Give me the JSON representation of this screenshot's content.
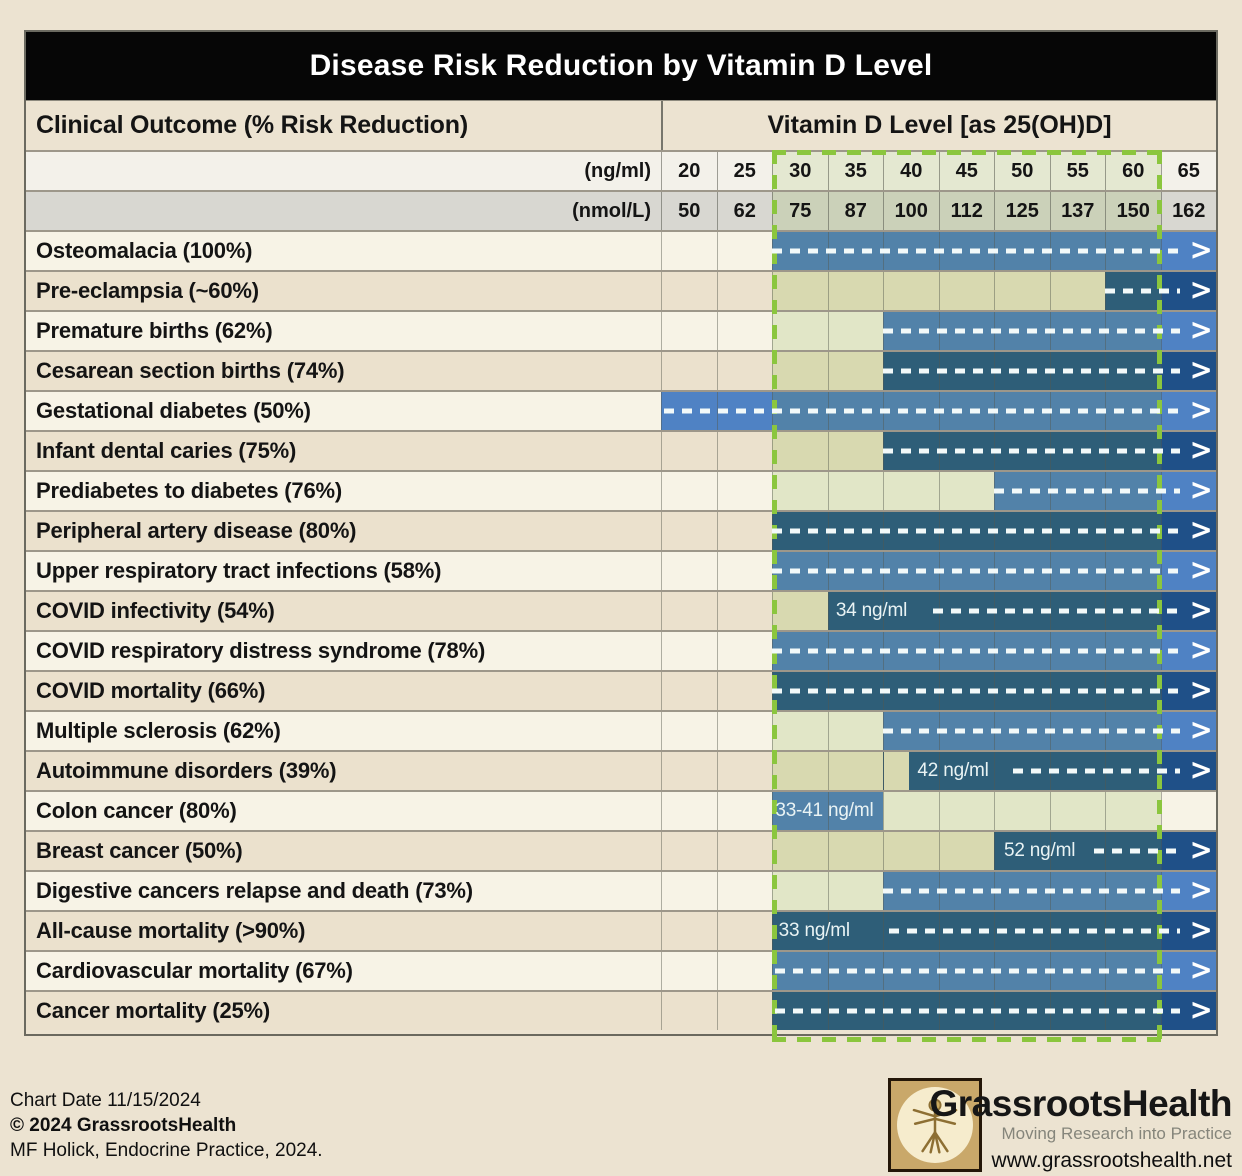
{
  "title": "Disease Risk Reduction by Vitamin D Level",
  "header": {
    "left": "Clinical Outcome (% Risk Reduction)",
    "right": "Vitamin D Level [as 25(OH)D]"
  },
  "units": {
    "row1_label": "(ng/ml)",
    "row1_values": [
      "20",
      "25",
      "30",
      "35",
      "40",
      "45",
      "50",
      "55",
      "60",
      "65"
    ],
    "row2_label": "(nmol/L)",
    "row2_values": [
      "50",
      "62",
      "75",
      "87",
      "100",
      "112",
      "125",
      "137",
      "150",
      "162"
    ]
  },
  "rows": [
    {
      "label": "Osteomalacia (100%)",
      "cells": [
        "plain",
        "plain",
        "med",
        "med",
        "med",
        "med",
        "med",
        "med",
        "med",
        "b65"
      ],
      "arrow": 2.0,
      "bar_label": null,
      "bar_label_pos": null
    },
    {
      "label": "Pre-eclampsia (~60%)",
      "cells": [
        "plain",
        "plain",
        "khaki",
        "khaki",
        "khaki",
        "khaki",
        "khaki",
        "khaki",
        "dark",
        "n65"
      ],
      "arrow": 8.0,
      "bar_label": null,
      "bar_label_pos": null
    },
    {
      "label": "Premature births (62%)",
      "cells": [
        "plain",
        "plain",
        "khaki",
        "khaki",
        "med",
        "med",
        "med",
        "med",
        "med",
        "b65"
      ],
      "arrow": 4.0,
      "bar_label": null,
      "bar_label_pos": null
    },
    {
      "label": "Cesarean section births (74%)",
      "cells": [
        "plain",
        "plain",
        "khaki",
        "khaki",
        "dark",
        "dark",
        "dark",
        "dark",
        "dark",
        "n65"
      ],
      "arrow": 4.0,
      "bar_label": null,
      "bar_label_pos": null
    },
    {
      "label": "Gestational diabetes (50%)",
      "cells": [
        "b65",
        "b65",
        "med",
        "med",
        "med",
        "med",
        "med",
        "med",
        "med",
        "b65"
      ],
      "arrow": 0.05,
      "bar_label": null,
      "bar_label_pos": null
    },
    {
      "label": "Infant dental caries (75%)",
      "cells": [
        "plain",
        "plain",
        "khaki",
        "khaki",
        "dark",
        "dark",
        "dark",
        "dark",
        "dark",
        "n65"
      ],
      "arrow": 4.0,
      "bar_label": null,
      "bar_label_pos": null
    },
    {
      "label": "Prediabetes to diabetes (76%)",
      "cells": [
        "plain",
        "plain",
        "khaki",
        "khaki",
        "khaki",
        "khaki",
        "med",
        "med",
        "med",
        "b65"
      ],
      "arrow": 6.0,
      "bar_label": null,
      "bar_label_pos": null
    },
    {
      "label": "Peripheral artery disease (80%)",
      "cells": [
        "plain",
        "plain",
        "dark",
        "dark",
        "dark",
        "dark",
        "dark",
        "dark",
        "dark",
        "n65"
      ],
      "arrow": 2.0,
      "bar_label": null,
      "bar_label_pos": null
    },
    {
      "label": "Upper respiratory tract infections (58%)",
      "cells": [
        "plain",
        "plain",
        "med",
        "med",
        "med",
        "med",
        "med",
        "med",
        "med",
        "b65"
      ],
      "arrow": 2.0,
      "bar_label": null,
      "bar_label_pos": null
    },
    {
      "label": "COVID infectivity (54%)",
      "cells": [
        "plain",
        "plain",
        "khaki",
        "dark",
        "dark",
        "dark",
        "dark",
        "dark",
        "dark",
        "n65"
      ],
      "arrow": 4.9,
      "bar_label": "34 ng/ml",
      "bar_label_pos": 3.15
    },
    {
      "label": "COVID respiratory distress syndrome (78%)",
      "cells": [
        "plain",
        "plain",
        "med",
        "med",
        "med",
        "med",
        "med",
        "med",
        "med",
        "b65"
      ],
      "arrow": 2.0,
      "bar_label": null,
      "bar_label_pos": null
    },
    {
      "label": "COVID mortality (66%)",
      "cells": [
        "plain",
        "plain",
        "dark",
        "dark",
        "dark",
        "dark",
        "dark",
        "dark",
        "dark",
        "n65"
      ],
      "arrow": 2.0,
      "bar_label": null,
      "bar_label_pos": null
    },
    {
      "label": "Multiple sclerosis (62%)",
      "cells": [
        "plain",
        "plain",
        "khaki",
        "khaki",
        "med",
        "med",
        "med",
        "med",
        "med",
        "b65"
      ],
      "arrow": 4.0,
      "bar_label": null,
      "bar_label_pos": null
    },
    {
      "label": "Autoimmune disorders (39%)",
      "cells": [
        "plain",
        "plain",
        "khaki",
        "khaki",
        "kd",
        "dark",
        "dark",
        "dark",
        "dark",
        "n65"
      ],
      "arrow": 6.35,
      "bar_label": "42 ng/ml",
      "bar_label_pos": 4.62
    },
    {
      "label": "Colon cancer (80%)",
      "cells": [
        "plain",
        "plain",
        "med",
        "med",
        "khaki",
        "khaki",
        "khaki",
        "khaki",
        "khaki",
        "plain"
      ],
      "arrow": null,
      "bar_label": "33-41 ng/ml",
      "bar_label_pos": 2.06
    },
    {
      "label": "Breast cancer (50%)",
      "cells": [
        "plain",
        "plain",
        "khaki",
        "khaki",
        "khaki",
        "khaki",
        "dark",
        "dark",
        "dark",
        "n65"
      ],
      "arrow": 7.8,
      "bar_label": "52 ng/ml",
      "bar_label_pos": 6.18
    },
    {
      "label": "Digestive cancers relapse and death (73%)",
      "cells": [
        "plain",
        "plain",
        "khaki",
        "khaki",
        "med",
        "med",
        "med",
        "med",
        "med",
        "b65"
      ],
      "arrow": 4.0,
      "bar_label": null,
      "bar_label_pos": null
    },
    {
      "label": "All-cause mortality (>90%)",
      "cells": [
        "plain",
        "plain",
        "dark",
        "dark",
        "dark",
        "dark",
        "dark",
        "dark",
        "dark",
        "n65"
      ],
      "arrow": 4.1,
      "bar_label": "33 ng/ml",
      "bar_label_pos": 2.12
    },
    {
      "label": "Cardiovascular mortality (67%)",
      "cells": [
        "plain",
        "plain",
        "med",
        "med",
        "med",
        "med",
        "med",
        "med",
        "med",
        "b65"
      ],
      "arrow": 2.05,
      "bar_label": null,
      "bar_label_pos": null
    },
    {
      "label": "Cancer mortality (25%)",
      "cells": [
        "plain",
        "plain",
        "dark",
        "dark",
        "dark",
        "dark",
        "dark",
        "dark",
        "dark",
        "n65"
      ],
      "arrow": 2.05,
      "bar_label": null,
      "bar_label_pos": null
    }
  ],
  "footer": {
    "line1": "Chart Date 11/15/2024",
    "line2": "© 2024 GrassrootsHealth",
    "line3": "MF Holick, Endocrine Practice, 2024.",
    "brand": "GrassrootsHealth",
    "tagline": "Moving Research into Practice",
    "website": "www.grassrootshealth.net"
  },
  "colors": {
    "page_bg": "#ece3d1",
    "title_bg": "#060606",
    "bar_medium_blue": "#5282a9",
    "bar_bright_blue": "#4f82c4",
    "bar_dark_teal": "#2e5e78",
    "bar_navy": "#1f5088",
    "khaki_light": "#e1e6c7",
    "khaki_tan": "#d8d9b0",
    "highlight_green": "#8bc63e"
  },
  "chart_data": {
    "type": "table",
    "title": "Disease Risk Reduction by Vitamin D Level",
    "x_axis": {
      "label": "Vitamin D Level [as 25(OH)D]",
      "ngml_ticks": [
        20,
        25,
        30,
        35,
        40,
        45,
        50,
        55,
        60,
        65
      ],
      "nmoll_ticks": [
        50,
        62,
        75,
        87,
        100,
        112,
        125,
        137,
        150,
        162
      ],
      "highlighted_range_ngml": [
        30,
        60
      ]
    },
    "rows": [
      {
        "outcome": "Osteomalacia",
        "risk_reduction": "100%",
        "benefit_start_ngml": 30,
        "open_ended": true
      },
      {
        "outcome": "Pre-eclampsia",
        "risk_reduction": "~60%",
        "benefit_start_ngml": 60,
        "open_ended": true
      },
      {
        "outcome": "Premature births",
        "risk_reduction": "62%",
        "benefit_start_ngml": 40,
        "open_ended": true
      },
      {
        "outcome": "Cesarean section births",
        "risk_reduction": "74%",
        "benefit_start_ngml": 40,
        "open_ended": true
      },
      {
        "outcome": "Gestational diabetes",
        "risk_reduction": "50%",
        "benefit_start_ngml": 20,
        "open_ended": true
      },
      {
        "outcome": "Infant dental caries",
        "risk_reduction": "75%",
        "benefit_start_ngml": 40,
        "open_ended": true
      },
      {
        "outcome": "Prediabetes to diabetes",
        "risk_reduction": "76%",
        "benefit_start_ngml": 50,
        "open_ended": true
      },
      {
        "outcome": "Peripheral artery disease",
        "risk_reduction": "80%",
        "benefit_start_ngml": 30,
        "open_ended": true
      },
      {
        "outcome": "Upper respiratory tract infections",
        "risk_reduction": "58%",
        "benefit_start_ngml": 30,
        "open_ended": true
      },
      {
        "outcome": "COVID infectivity",
        "risk_reduction": "54%",
        "benefit_start_ngml": 34,
        "open_ended": true
      },
      {
        "outcome": "COVID respiratory distress syndrome",
        "risk_reduction": "78%",
        "benefit_start_ngml": 30,
        "open_ended": true
      },
      {
        "outcome": "COVID mortality",
        "risk_reduction": "66%",
        "benefit_start_ngml": 30,
        "open_ended": true
      },
      {
        "outcome": "Multiple sclerosis",
        "risk_reduction": "62%",
        "benefit_start_ngml": 40,
        "open_ended": true
      },
      {
        "outcome": "Autoimmune disorders",
        "risk_reduction": "39%",
        "benefit_start_ngml": 42,
        "open_ended": true
      },
      {
        "outcome": "Colon cancer",
        "risk_reduction": "80%",
        "benefit_range_ngml": [
          33,
          41
        ],
        "open_ended": false
      },
      {
        "outcome": "Breast cancer",
        "risk_reduction": "50%",
        "benefit_start_ngml": 52,
        "open_ended": true
      },
      {
        "outcome": "Digestive cancers relapse and death",
        "risk_reduction": "73%",
        "benefit_start_ngml": 40,
        "open_ended": true
      },
      {
        "outcome": "All-cause mortality",
        "risk_reduction": ">90%",
        "benefit_start_ngml": 33,
        "open_ended": true
      },
      {
        "outcome": "Cardiovascular mortality",
        "risk_reduction": "67%",
        "benefit_start_ngml": 30,
        "open_ended": true
      },
      {
        "outcome": "Cancer mortality",
        "risk_reduction": "25%",
        "benefit_start_ngml": 30,
        "open_ended": true
      }
    ]
  }
}
